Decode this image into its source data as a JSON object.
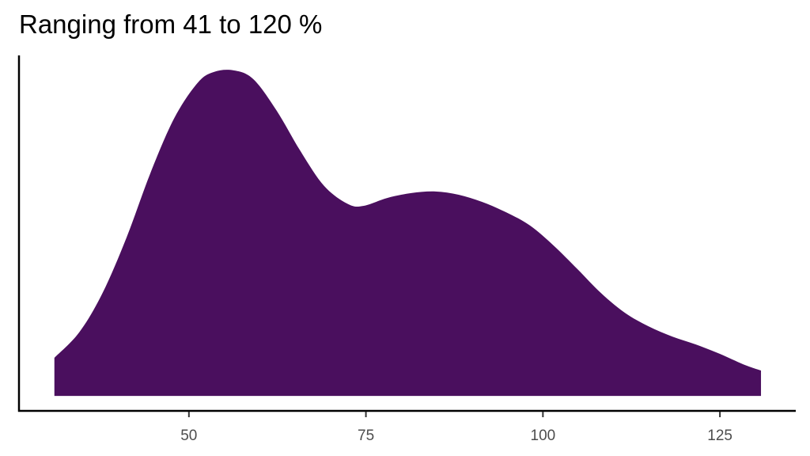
{
  "chart_data": {
    "type": "area",
    "title": "Ranging from 41 to 120 %",
    "xlabel": "",
    "ylabel": "",
    "fill_color": "#4A0F5E",
    "xlim": [
      26.0,
      135.6
    ],
    "ylim": [
      -0.046,
      1.046
    ],
    "x_ticks": [
      50,
      75,
      100,
      125
    ],
    "y_ticks": [],
    "grid": false,
    "x": [
      31.0,
      34.5,
      37.8,
      41.2,
      44.5,
      47.9,
      51.2,
      53.5,
      56.3,
      59.1,
      62.4,
      65.7,
      69.1,
      72.5,
      74.7,
      78.0,
      81.4,
      84.8,
      88.1,
      91.4,
      94.8,
      98.2,
      101.5,
      104.9,
      108.2,
      111.6,
      114.9,
      118.3,
      121.6,
      125.0,
      128.3,
      130.8
    ],
    "y": [
      0.117,
      0.195,
      0.316,
      0.487,
      0.681,
      0.852,
      0.961,
      0.995,
      1.0,
      0.973,
      0.876,
      0.754,
      0.645,
      0.589,
      0.584,
      0.608,
      0.623,
      0.628,
      0.618,
      0.596,
      0.564,
      0.523,
      0.462,
      0.389,
      0.316,
      0.255,
      0.214,
      0.182,
      0.158,
      0.129,
      0.097,
      0.078
    ]
  }
}
